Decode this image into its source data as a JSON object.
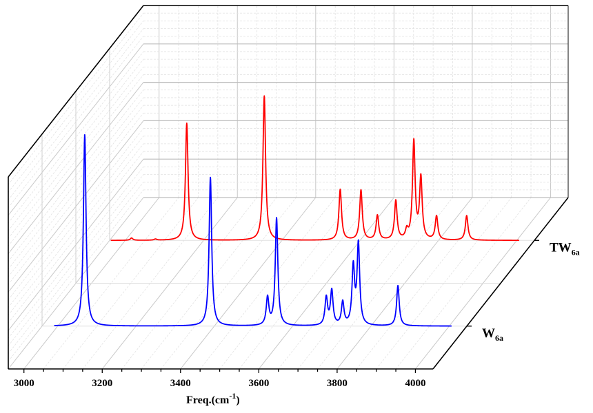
{
  "chart_data": {
    "type": "line",
    "subtype": "3d-waterfall",
    "title": "",
    "xlabel": "Freq.(cm",
    "xlabel_sup": "-1",
    "xlabel_end": ")",
    "ylabel": "",
    "xlim": [
      2960,
      4045
    ],
    "ylim": [
      0,
      5
    ],
    "x_ticks": [
      3000,
      3200,
      3400,
      3600,
      3800,
      4000
    ],
    "x_tick_labels": [
      "3000",
      "3200",
      "3400",
      "3600",
      "3800",
      "4000"
    ],
    "grid": true,
    "peak_hwhm": 4,
    "series": [
      {
        "name": "W6a",
        "label_main": "W",
        "label_sub": "6a",
        "color": "#0000ff",
        "depth": 0.25,
        "x_range": [
          2991,
          4006
        ],
        "peaks": [
          {
            "x": 3069,
            "intensity": 4.98
          },
          {
            "x": 3390,
            "intensity": 3.87
          },
          {
            "x": 3536,
            "intensity": 0.72
          },
          {
            "x": 3559,
            "intensity": 2.8
          },
          {
            "x": 3686,
            "intensity": 0.72
          },
          {
            "x": 3700,
            "intensity": 0.9
          },
          {
            "x": 3728,
            "intensity": 0.6
          },
          {
            "x": 3755,
            "intensity": 1.5
          },
          {
            "x": 3768,
            "intensity": 2.1
          },
          {
            "x": 3869,
            "intensity": 1.05
          }
        ]
      },
      {
        "name": "TW6a",
        "label_main": "TW",
        "label_sub": "6a",
        "color": "#ff0000",
        "depth": 0.75,
        "x_range": [
          2963,
          4006
        ],
        "peaks": [
          {
            "x": 3016,
            "intensity": 0.06
          },
          {
            "x": 3077,
            "intensity": 0.03
          },
          {
            "x": 3157,
            "intensity": 3.05
          },
          {
            "x": 3355,
            "intensity": 3.76
          },
          {
            "x": 3549,
            "intensity": 1.32
          },
          {
            "x": 3602,
            "intensity": 1.3
          },
          {
            "x": 3644,
            "intensity": 0.64
          },
          {
            "x": 3691,
            "intensity": 1.02
          },
          {
            "x": 3719,
            "intensity": 0.22
          },
          {
            "x": 3737,
            "intensity": 2.55
          },
          {
            "x": 3755,
            "intensity": 1.6
          },
          {
            "x": 3795,
            "intensity": 0.62
          },
          {
            "x": 3872,
            "intensity": 0.64
          }
        ]
      }
    ]
  }
}
